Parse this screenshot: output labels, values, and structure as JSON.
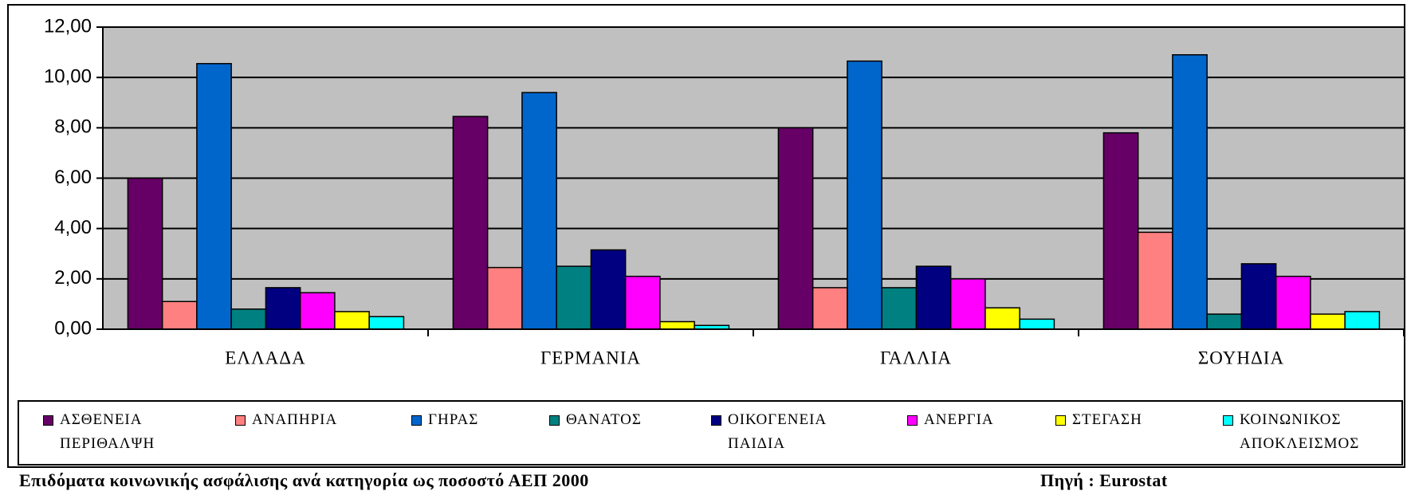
{
  "chart_data": {
    "type": "bar",
    "categories": [
      "ΕΛΛΑΔΑ",
      "ΓΕΡΜΑΝΙΑ",
      "ΓΑΛΛΙΑ",
      "ΣΟΥΗΔΙΑ"
    ],
    "series": [
      {
        "name": "ΑΣΘΕΝΕΙΑ\nΠΕΡΙΘΑΛΨΗ",
        "color": "#660066",
        "values": [
          6.0,
          8.45,
          8.0,
          7.8
        ]
      },
      {
        "name": "ΑΝΑΠΗΡΙΑ",
        "color": "#ff8080",
        "values": [
          1.1,
          2.45,
          1.65,
          3.85
        ]
      },
      {
        "name": "ΓΗΡΑΣ",
        "color": "#0066cc",
        "values": [
          10.55,
          9.4,
          10.65,
          10.9
        ]
      },
      {
        "name": "ΘΑΝΑΤΟΣ",
        "color": "#008080",
        "values": [
          0.8,
          2.5,
          1.65,
          0.6
        ]
      },
      {
        "name": "ΟΙΚΟΓΕΝΕΙΑ\nΠΑΙΔΙΑ",
        "color": "#000080",
        "values": [
          1.65,
          3.15,
          2.5,
          2.6
        ]
      },
      {
        "name": "ΑΝΕΡΓΙΑ",
        "color": "#ff00ff",
        "values": [
          1.45,
          2.1,
          2.0,
          2.1
        ]
      },
      {
        "name": "ΣΤΕΓΑΣΗ",
        "color": "#ffff00",
        "values": [
          0.7,
          0.3,
          0.85,
          0.6
        ]
      },
      {
        "name": "ΚΟΙΝΩΝΙΚΟΣ\nΑΠΟΚΛΕΙΣΜΟΣ",
        "color": "#00ffff",
        "values": [
          0.5,
          0.15,
          0.4,
          0.7
        ]
      }
    ],
    "ylim": [
      0,
      12
    ],
    "yticks": [
      {
        "value": 0,
        "label": "0,00"
      },
      {
        "value": 2,
        "label": "2,00"
      },
      {
        "value": 4,
        "label": "4,00"
      },
      {
        "value": 6,
        "label": "6,00"
      },
      {
        "value": 8,
        "label": "8,00"
      },
      {
        "value": 10,
        "label": "10,00"
      },
      {
        "value": 12,
        "label": "12,00"
      }
    ],
    "grid": true,
    "legend": "bottom",
    "caption": "Επιδόματα κοινωνικής ασφάλισης ανά κατηγορία ως ποσοστό ΑΕΠ 2000",
    "source": "Πηγή : Eurostat"
  }
}
